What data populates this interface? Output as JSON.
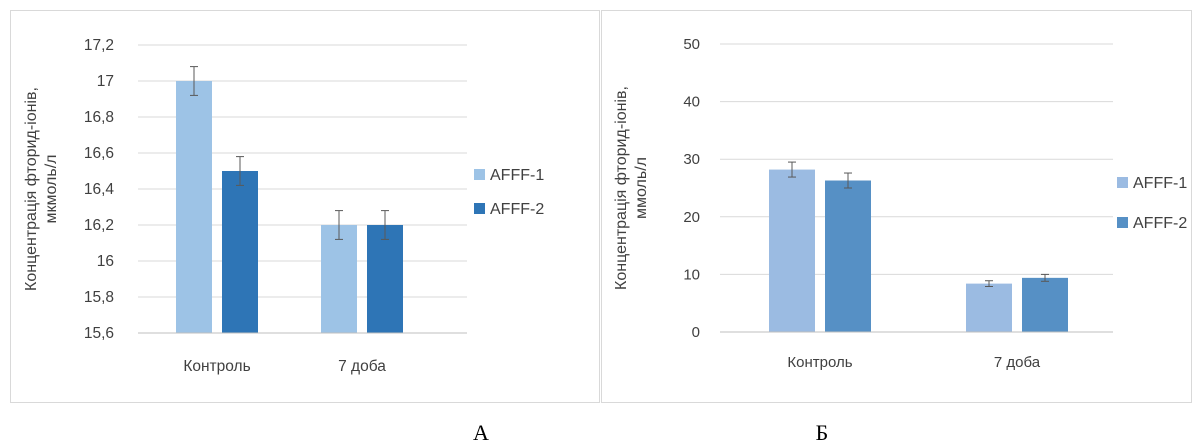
{
  "panels": [
    {
      "caption": "А"
    },
    {
      "caption": "Б"
    }
  ],
  "colors": {
    "left_afff1": "#9DC3E6",
    "left_afff2": "#2E75B6",
    "right_afff1": "#9BBBE2",
    "right_afff2": "#5690C5",
    "grid": "#D9D9D9",
    "error_bar": "#595959"
  },
  "chart_data": [
    {
      "type": "bar",
      "title": "",
      "categories": [
        "Контроль",
        "7 доба"
      ],
      "series": [
        {
          "name": "AFFF-1",
          "values": [
            17.0,
            16.2
          ],
          "errors": [
            0.08,
            0.08
          ]
        },
        {
          "name": "AFFF-2",
          "values": [
            16.5,
            16.2
          ],
          "errors": [
            0.08,
            0.08
          ]
        }
      ],
      "xlabel": "",
      "ylabel": "Концентрація фторид-іонів, мкмоль/л",
      "ylim": [
        15.6,
        17.2
      ],
      "yticks": [
        "15,6",
        "15,8",
        "16",
        "16,2",
        "16,4",
        "16,6",
        "16,8",
        "17",
        "17,2"
      ],
      "grid": true,
      "legend": "right"
    },
    {
      "type": "bar",
      "title": "",
      "categories": [
        "Контроль",
        "7 доба"
      ],
      "series": [
        {
          "name": "AFFF-1",
          "values": [
            28.2,
            8.4
          ],
          "errors": [
            1.3,
            0.5
          ]
        },
        {
          "name": "AFFF-2",
          "values": [
            26.3,
            9.4
          ],
          "errors": [
            1.3,
            0.6
          ]
        }
      ],
      "xlabel": "",
      "ylabel": "Концентрація фторид-іонів, ммоль/л",
      "ylim": [
        0,
        50
      ],
      "yticks": [
        "0",
        "10",
        "20",
        "30",
        "40",
        "50"
      ],
      "grid": true,
      "legend": "right"
    }
  ]
}
